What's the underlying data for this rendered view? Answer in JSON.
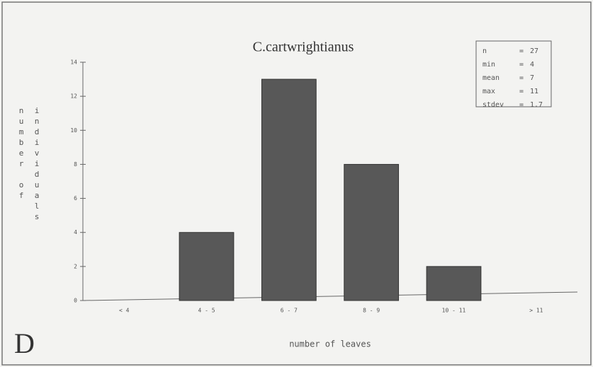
{
  "chart_data": {
    "type": "bar",
    "title": "C.cartwrightianus",
    "panel_label": "D",
    "x_label": "number of leaves",
    "y_label": [
      "number of",
      "individuals"
    ],
    "categories": [
      "< 4",
      "4 - 5",
      "6 - 7",
      "8 - 9",
      "10 - 11",
      "> 11"
    ],
    "values": [
      0,
      4,
      13,
      8,
      2,
      0
    ],
    "color": "#585858",
    "ylim": [
      0,
      14
    ],
    "yticks": [
      0,
      2,
      4,
      6,
      8,
      10,
      12,
      14
    ],
    "stats": [
      {
        "label": "n",
        "value": 27
      },
      {
        "label": "min",
        "value": 4
      },
      {
        "label": "mean",
        "value": 7
      },
      {
        "label": "max",
        "value": 11
      },
      {
        "label": "stdev",
        "value": 1.7
      }
    ],
    "stats_sep": "="
  }
}
